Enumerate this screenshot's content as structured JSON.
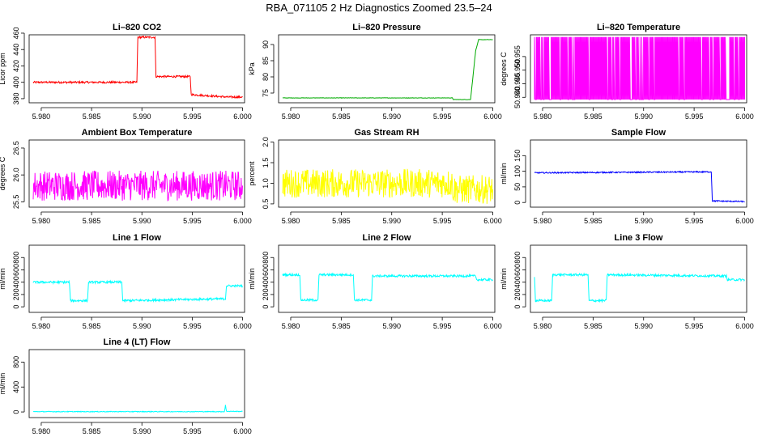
{
  "figure_title": "RBA_071105  2 Hz Diagnostics Zoomed 23.5–24",
  "chart_data": [
    {
      "type": "line",
      "title": "Li–820 CO2",
      "ylabel": "Licor ppm",
      "color": "#ff0000",
      "xlim": [
        5.9788,
        6.0002
      ],
      "ylim": [
        375,
        458
      ],
      "xticks": [
        "5.980",
        "5.985",
        "5.990",
        "5.995",
        "6.000"
      ],
      "xtick_values": [
        5.98,
        5.985,
        5.99,
        5.995,
        6.0
      ],
      "yticks": [
        "380",
        "400",
        "420",
        "440",
        "460"
      ],
      "ytick_values": [
        380,
        400,
        420,
        440,
        460
      ],
      "series": [
        {
          "x": [
            5.9792,
            5.9895,
            5.9896,
            5.9913,
            5.9914,
            5.9948,
            5.9949,
            5.9985,
            6.0
          ],
          "y": [
            400,
            400,
            455,
            455,
            407,
            407,
            385,
            382,
            382
          ],
          "noise": 1.2
        }
      ]
    },
    {
      "type": "line",
      "title": "Li–820 Pressure",
      "ylabel": "kPa",
      "color": "#00aa00",
      "xlim": [
        5.9788,
        6.0002
      ],
      "ylim": [
        72,
        93
      ],
      "xticks": [
        "5.980",
        "5.985",
        "5.990",
        "5.995",
        "6.000"
      ],
      "xtick_values": [
        5.98,
        5.985,
        5.99,
        5.995,
        6.0
      ],
      "yticks": [
        "75",
        "80",
        "85",
        "90"
      ],
      "ytick_values": [
        75,
        80,
        85,
        90
      ],
      "series": [
        {
          "x": [
            5.9792,
            5.996,
            5.9961,
            5.9978,
            5.998,
            5.9983,
            5.9986,
            6.0
          ],
          "y": [
            73.5,
            73.5,
            73.0,
            73.0,
            79,
            88,
            91.5,
            91.5
          ],
          "noise": 0.05
        }
      ]
    },
    {
      "type": "line",
      "title": "Li–820 Temperature",
      "ylabel": "degrees C",
      "color": "#ff00ff",
      "xlim": [
        5.9788,
        6.0002
      ],
      "ylim": [
        50.938,
        50.963
      ],
      "xticks": [
        "5.980",
        "5.985",
        "5.990",
        "5.995",
        "6.000"
      ],
      "xtick_values": [
        5.98,
        5.985,
        5.99,
        5.995,
        6.0
      ],
      "yticks": [
        "50.940",
        "50.945",
        "50.950",
        "50.955"
      ],
      "ytick_values": [
        50.94,
        50.945,
        50.95,
        50.955
      ],
      "series": [
        {
          "x": [
            5.9792,
            6.0
          ],
          "y": [
            50.9392,
            50.9622
          ],
          "pattern": "quantized"
        }
      ]
    },
    {
      "type": "line",
      "title": "Ambient Box Temperature",
      "ylabel": "degrees C",
      "color": "#ff00ff",
      "xlim": [
        5.9788,
        6.0002
      ],
      "ylim": [
        25.4,
        26.65
      ],
      "xticks": [
        "5.980",
        "5.985",
        "5.990",
        "5.995",
        "6.000"
      ],
      "xtick_values": [
        5.98,
        5.985,
        5.99,
        5.995,
        6.0
      ],
      "yticks": [
        "25.5",
        "26.0",
        "26.5"
      ],
      "ytick_values": [
        25.5,
        26.0,
        26.5
      ],
      "series": [
        {
          "x": [
            5.9792,
            6.0
          ],
          "y": [
            25.8,
            25.8
          ],
          "noise": 0.28
        }
      ]
    },
    {
      "type": "line",
      "title": "Gas Stream RH",
      "ylabel": "percent",
      "color": "#ffff00",
      "xlim": [
        5.9788,
        6.0002
      ],
      "ylim": [
        0.42,
        2.05
      ],
      "xticks": [
        "5.980",
        "5.985",
        "5.990",
        "5.995",
        "6.000"
      ],
      "xtick_values": [
        5.98,
        5.985,
        5.99,
        5.995,
        6.0
      ],
      "yticks": [
        "0.5",
        "1.0",
        "1.5",
        "2.0"
      ],
      "ytick_values": [
        0.5,
        1.0,
        1.5,
        2.0
      ],
      "series": [
        {
          "x": [
            5.9792,
            5.996,
            5.9961,
            6.0
          ],
          "y": [
            1.0,
            1.0,
            0.85,
            0.85
          ],
          "noise": 0.35
        }
      ]
    },
    {
      "type": "line",
      "title": "Sample Flow",
      "ylabel": "ml/min",
      "color": "#0000ff",
      "xlim": [
        5.9788,
        6.0002
      ],
      "ylim": [
        -15,
        200
      ],
      "xticks": [
        "5.980",
        "5.985",
        "5.990",
        "5.995",
        "6.000"
      ],
      "xtick_values": [
        5.98,
        5.985,
        5.99,
        5.995,
        6.0
      ],
      "yticks": [
        "0",
        "50",
        "100",
        "150"
      ],
      "ytick_values": [
        0,
        50,
        100,
        150
      ],
      "series": [
        {
          "x": [
            5.9792,
            5.9966,
            5.9967,
            5.9968,
            6.0
          ],
          "y": [
            95,
            98,
            98,
            5,
            3
          ],
          "noise": 2
        }
      ]
    },
    {
      "type": "line",
      "title": "Line 1 Flow",
      "ylabel": "ml/min",
      "color": "#00ffff",
      "xlim": [
        5.9788,
        6.0002
      ],
      "ylim": [
        -90,
        1000
      ],
      "xticks": [
        "5.980",
        "5.985",
        "5.990",
        "5.995",
        "6.000"
      ],
      "xtick_values": [
        5.98,
        5.985,
        5.99,
        5.995,
        6.0
      ],
      "yticks": [
        "0",
        "200",
        "400",
        "600",
        "800"
      ],
      "ytick_values": [
        0,
        200,
        400,
        600,
        800
      ],
      "series": [
        {
          "x": [
            5.9792,
            5.9828,
            5.9829,
            5.9846,
            5.9847,
            5.988,
            5.9881,
            5.9983,
            5.9984,
            6.0
          ],
          "y": [
            400,
            400,
            100,
            100,
            400,
            400,
            100,
            130,
            340,
            340
          ],
          "noise": 18
        }
      ]
    },
    {
      "type": "line",
      "title": "Line 2 Flow",
      "ylabel": "ml/min",
      "color": "#00ffff",
      "xlim": [
        5.9788,
        6.0002
      ],
      "ylim": [
        -90,
        1000
      ],
      "xticks": [
        "5.980",
        "5.985",
        "5.990",
        "5.995",
        "6.000"
      ],
      "xtick_values": [
        5.98,
        5.985,
        5.99,
        5.995,
        6.0
      ],
      "yticks": [
        "0",
        "200",
        "400",
        "600",
        "800"
      ],
      "ytick_values": [
        0,
        200,
        400,
        600,
        800
      ],
      "series": [
        {
          "x": [
            5.9792,
            5.9809,
            5.981,
            5.9827,
            5.9828,
            5.9862,
            5.9863,
            5.988,
            5.9881,
            5.9983,
            5.9984,
            6.0
          ],
          "y": [
            520,
            520,
            110,
            110,
            520,
            520,
            110,
            110,
            500,
            500,
            440,
            440
          ],
          "noise": 18
        }
      ]
    },
    {
      "type": "line",
      "title": "Line 3 Flow",
      "ylabel": "ml/min",
      "color": "#00ffff",
      "xlim": [
        5.9788,
        6.0002
      ],
      "ylim": [
        -90,
        1000
      ],
      "xticks": [
        "5.980",
        "5.985",
        "5.990",
        "5.995",
        "6.000"
      ],
      "xtick_values": [
        5.98,
        5.985,
        5.99,
        5.995,
        6.0
      ],
      "yticks": [
        "0",
        "200",
        "400",
        "600",
        "800"
      ],
      "ytick_values": [
        0,
        200,
        400,
        600,
        800
      ],
      "series": [
        {
          "x": [
            5.9792,
            5.9793,
            5.9809,
            5.981,
            5.9845,
            5.9846,
            5.9863,
            5.9864,
            5.9982,
            5.9983,
            6.0
          ],
          "y": [
            500,
            100,
            100,
            520,
            520,
            100,
            100,
            520,
            500,
            440,
            440
          ],
          "noise": 18
        }
      ]
    },
    {
      "type": "line",
      "title": "Line 4 (LT) Flow",
      "ylabel": "ml/min",
      "color": "#00ffff",
      "xlim": [
        5.9788,
        6.0002
      ],
      "ylim": [
        -90,
        1000
      ],
      "xticks": [
        "5.980",
        "5.985",
        "5.990",
        "5.995",
        "6.000"
      ],
      "xtick_values": [
        5.98,
        5.985,
        5.99,
        5.995,
        6.0
      ],
      "yticks": [
        "0",
        "400",
        "800"
      ],
      "ytick_values": [
        0,
        400,
        800
      ],
      "series": [
        {
          "x": [
            5.9792,
            5.9982,
            5.9983,
            5.9984,
            6.0
          ],
          "y": [
            5,
            5,
            110,
            10,
            8
          ],
          "noise": 6
        }
      ]
    }
  ]
}
